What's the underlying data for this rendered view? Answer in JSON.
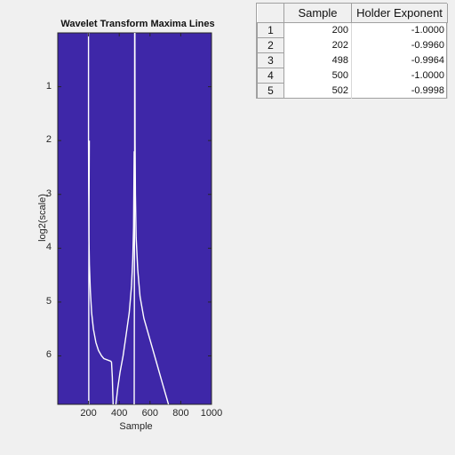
{
  "figure": {
    "title": "Wavelet Transform Maxima Lines"
  },
  "chart_data": {
    "type": "line",
    "title": "Wavelet Transform Maxima Lines",
    "xlabel": "Sample",
    "ylabel": "log2(scale)",
    "xlim": [
      0,
      1000
    ],
    "ylim": [
      0.0,
      6.9
    ],
    "y_direction": "reversed",
    "background_color": "#3e27a8",
    "line_color": "#ffffff",
    "grid": false,
    "xticks": [
      200,
      400,
      600,
      800,
      1000
    ],
    "xtick_labels": [
      "200",
      "400",
      "600",
      "800",
      "1000"
    ],
    "yticks": [
      1,
      2,
      3,
      4,
      5,
      6
    ],
    "ytick_labels": [
      "1",
      "2",
      "3",
      "4",
      "5",
      "6"
    ],
    "series": [
      {
        "x": [
          200,
          200,
          201,
          203,
          206,
          212,
          220,
          232,
          248,
          265,
          285,
          300,
          345,
          350,
          355,
          358,
          360
        ],
        "y": [
          0.0,
          2.0,
          3.0,
          3.8,
          4.3,
          4.8,
          5.2,
          5.5,
          5.75,
          5.9,
          6.0,
          6.05,
          6.1,
          6.12,
          6.4,
          6.7,
          6.9
        ]
      },
      {
        "x": [
          205,
          203,
          202,
          202
        ],
        "y": [
          2.0,
          3.5,
          5.0,
          6.9
        ]
      },
      {
        "x": [
          500,
          500,
          499,
          498,
          497
        ],
        "y": [
          0.0,
          2.2,
          3.5,
          5.0,
          6.9
        ]
      },
      {
        "x": [
          502,
          503,
          505,
          510,
          520,
          535,
          560,
          600,
          640,
          680,
          720
        ],
        "y": [
          0.0,
          2.0,
          3.0,
          3.8,
          4.4,
          4.9,
          5.3,
          5.7,
          6.1,
          6.5,
          6.9
        ]
      },
      {
        "x": [
          497,
          495,
          493,
          488,
          480,
          465,
          445,
          425,
          405,
          390,
          378
        ],
        "y": [
          2.2,
          3.0,
          3.6,
          4.2,
          4.7,
          5.2,
          5.6,
          6.0,
          6.3,
          6.6,
          6.9
        ]
      }
    ]
  },
  "table": {
    "columns": [
      "",
      "Sample",
      "Holder Exponent"
    ],
    "rows": [
      {
        "index": "1",
        "sample": "200",
        "holder": "-1.0000"
      },
      {
        "index": "2",
        "sample": "202",
        "holder": "-0.9960"
      },
      {
        "index": "3",
        "sample": "498",
        "holder": "-0.9964"
      },
      {
        "index": "4",
        "sample": "500",
        "holder": "-1.0000"
      },
      {
        "index": "5",
        "sample": "502",
        "holder": "-0.9998"
      }
    ]
  }
}
